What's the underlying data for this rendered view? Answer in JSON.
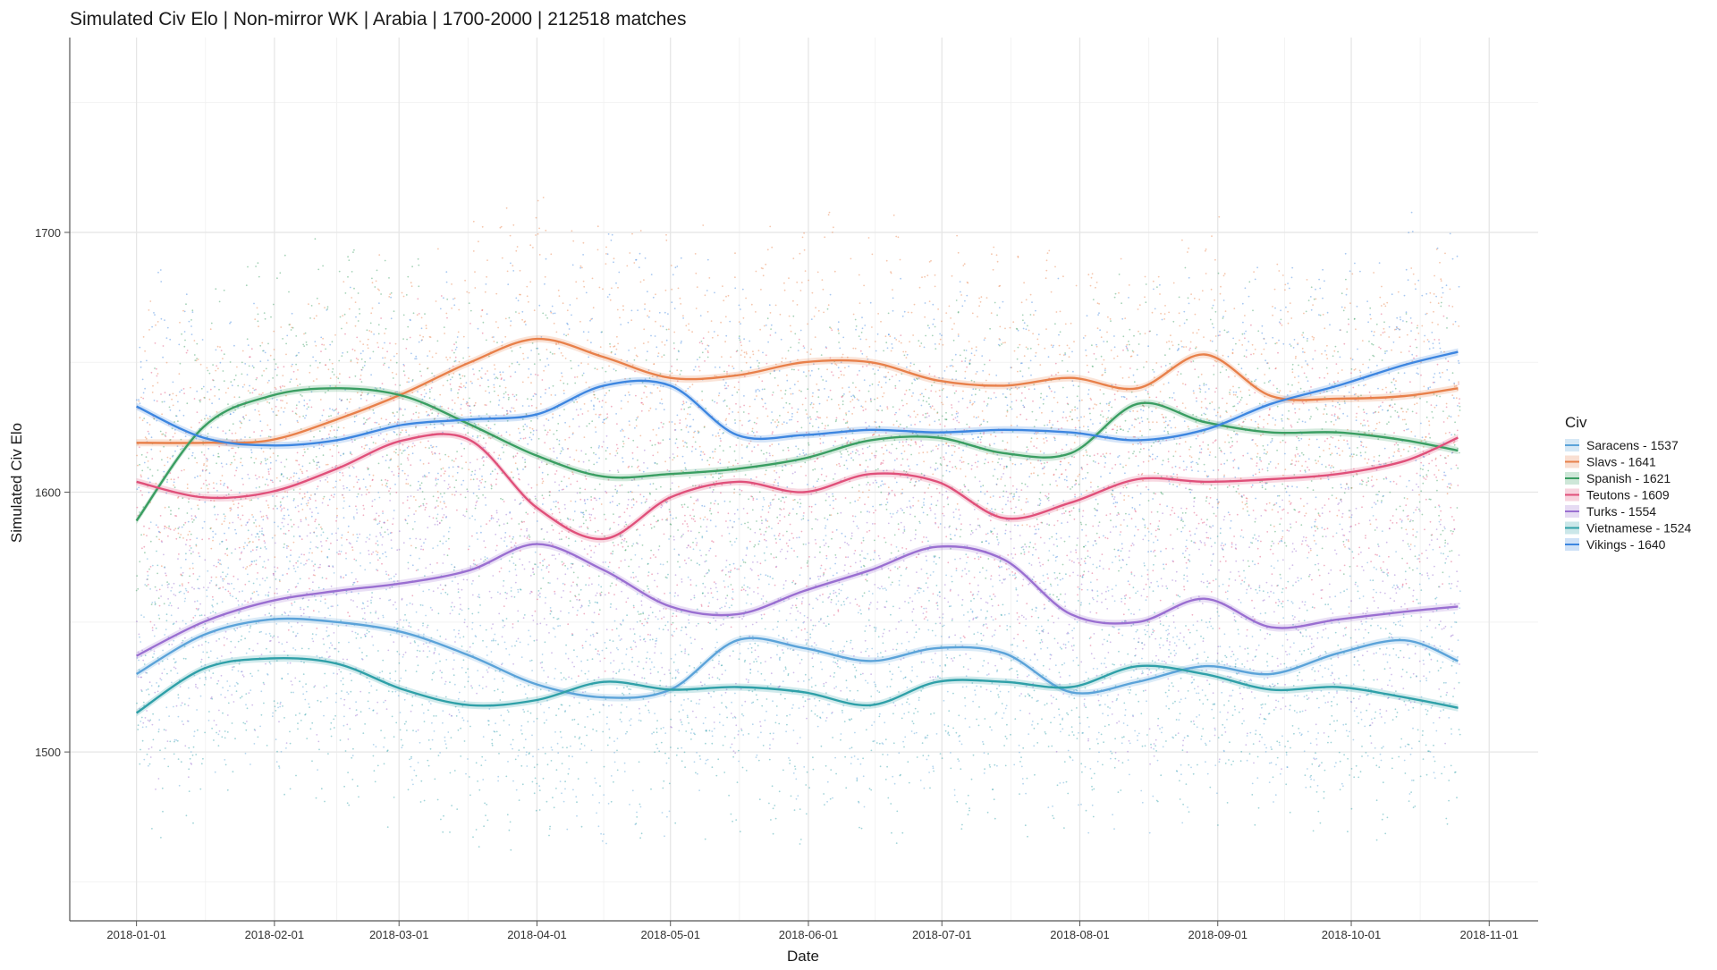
{
  "chart_data": {
    "type": "line",
    "title": "Simulated Civ Elo | Non-mirror WK | Arabia | 1700-2000 | 212518 matches",
    "xlabel": "Date",
    "ylabel": "Simulated Civ Elo",
    "x_ticks": [
      "2018-01-01",
      "2018-02-01",
      "2018-03-01",
      "2018-04-01",
      "2018-05-01",
      "2018-06-01",
      "2018-07-01",
      "2018-08-01",
      "2018-09-01",
      "2018-10-01",
      "2018-11-01"
    ],
    "x_tick_days": [
      0,
      31,
      59,
      90,
      120,
      151,
      181,
      212,
      243,
      273,
      304
    ],
    "xlim_days": [
      -15,
      315
    ],
    "y_ticks": [
      1500,
      1600,
      1700
    ],
    "ylim": [
      1435,
      1775
    ],
    "grid": true,
    "legend_title": "Civ",
    "legend_position": "right",
    "x": [
      0,
      15,
      30,
      45,
      60,
      75,
      90,
      105,
      120,
      135,
      150,
      165,
      180,
      195,
      210,
      225,
      240,
      255,
      270,
      285,
      297
    ],
    "series": [
      {
        "name": "Saracens - 1537",
        "color": "#5BA3D9",
        "values": [
          1530,
          1545,
          1551,
          1550,
          1546,
          1537,
          1526,
          1521,
          1524,
          1543,
          1540,
          1535,
          1540,
          1538,
          1523,
          1527,
          1533,
          1530,
          1538,
          1543,
          1535
        ]
      },
      {
        "name": "Slavs - 1641",
        "color": "#E8804A",
        "values": [
          1619,
          1619,
          1620,
          1628,
          1638,
          1650,
          1659,
          1652,
          1644,
          1645,
          1650,
          1650,
          1643,
          1641,
          1644,
          1640,
          1653,
          1637,
          1636,
          1637,
          1640
        ]
      },
      {
        "name": "Spanish - 1621",
        "color": "#3A9E62",
        "values": [
          1589,
          1625,
          1637,
          1640,
          1637,
          1626,
          1614,
          1606,
          1607,
          1609,
          1613,
          1620,
          1621,
          1615,
          1615,
          1634,
          1627,
          1623,
          1623,
          1620,
          1616
        ]
      },
      {
        "name": "Teutons - 1609",
        "color": "#E0507A",
        "values": [
          1604,
          1598,
          1600,
          1609,
          1620,
          1620,
          1594,
          1582,
          1598,
          1604,
          1600,
          1607,
          1604,
          1590,
          1596,
          1605,
          1604,
          1605,
          1607,
          1612,
          1621
        ]
      },
      {
        "name": "Turks - 1554",
        "color": "#9A6FD1",
        "values": [
          1537,
          1550,
          1558,
          1562,
          1565,
          1570,
          1580,
          1570,
          1556,
          1553,
          1562,
          1570,
          1579,
          1574,
          1553,
          1550,
          1559,
          1548,
          1551,
          1554,
          1556
        ]
      },
      {
        "name": "Vietnamese - 1524",
        "color": "#2FA0A8",
        "values": [
          1515,
          1532,
          1536,
          1534,
          1524,
          1518,
          1520,
          1527,
          1524,
          1525,
          1523,
          1518,
          1527,
          1527,
          1525,
          1533,
          1530,
          1524,
          1525,
          1521,
          1517
        ]
      },
      {
        "name": "Vikings - 1640",
        "color": "#3D86E0",
        "values": [
          1633,
          1621,
          1618,
          1620,
          1626,
          1628,
          1630,
          1641,
          1641,
          1622,
          1622,
          1624,
          1623,
          1624,
          1623,
          1620,
          1624,
          1634,
          1641,
          1649,
          1654
        ]
      }
    ]
  }
}
